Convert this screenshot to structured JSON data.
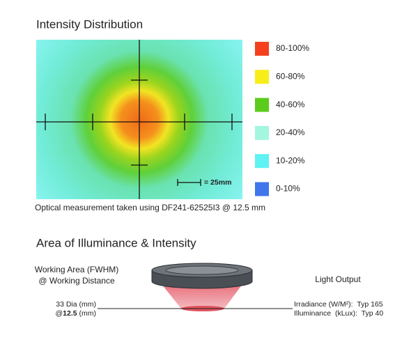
{
  "distribution": {
    "title": "Intensity Distribution",
    "legend": [
      {
        "label": "80-100%",
        "color": "#f4401f"
      },
      {
        "label": "60-80%",
        "color": "#f7ee19"
      },
      {
        "label": "40-60%",
        "color": "#5ccc1c"
      },
      {
        "label": "20-40%",
        "color": "#a3f6df"
      },
      {
        "label": "10-20%",
        "color": "#5ff2f2"
      },
      {
        "label": "0-10%",
        "color": "#3f76ec"
      }
    ],
    "scale_label": "= 25mm",
    "caption": "Optical measurement taken using DF241-62525I3 @ 12.5 mm"
  },
  "illuminance": {
    "title": "Area of Illuminance & Intensity",
    "working_area": [
      "Working Area (FWHM)",
      "@ Working Distance"
    ],
    "light_output": "Light Output",
    "diameter": "33 Dia (mm)",
    "distance": {
      "prefix": "@",
      "value": "12.5",
      "unit": " (mm)"
    },
    "irradiance": "Irradiance (W/M²):  Typ 165",
    "illuminance": "Illuminance  (kLux):  Typ 40"
  }
}
